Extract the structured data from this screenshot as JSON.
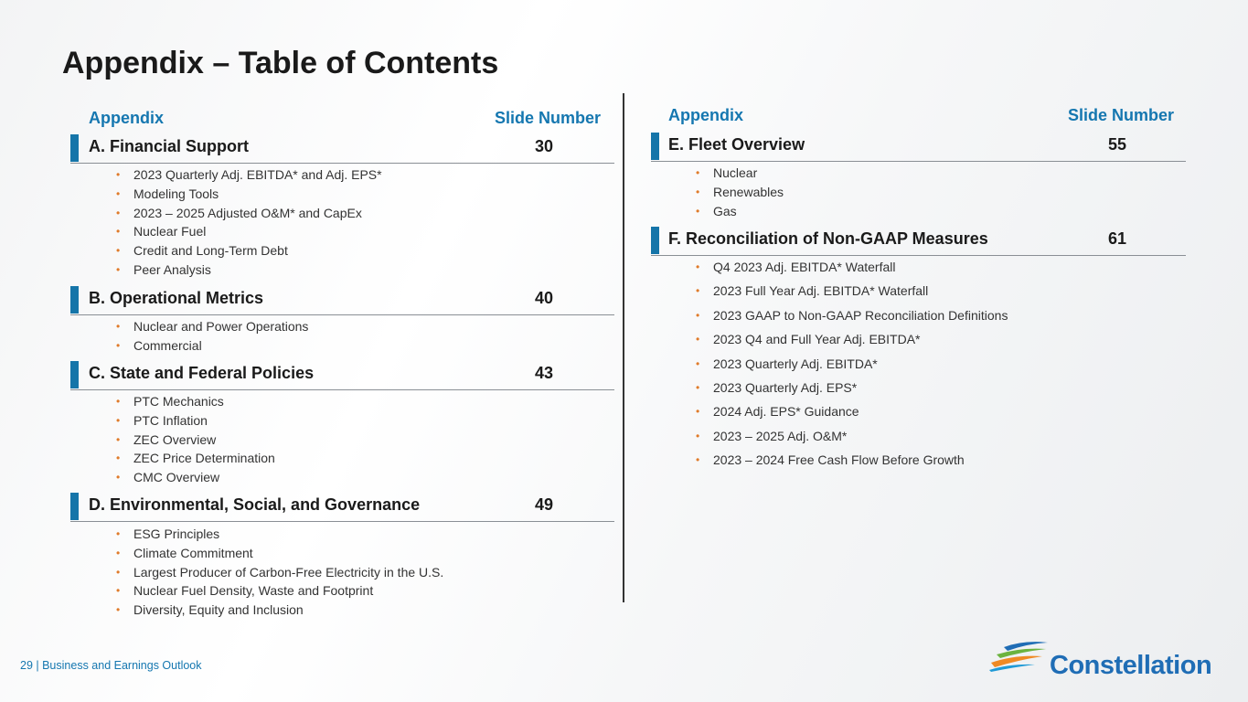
{
  "title": "Appendix – Table of Contents",
  "columns": [
    {
      "header": {
        "appendix": "Appendix",
        "slide_number": "Slide Number"
      },
      "sections": [
        {
          "title": "A. Financial Support",
          "slide": 30,
          "items": [
            "2023 Quarterly Adj. EBITDA* and Adj. EPS*",
            "Modeling Tools",
            "2023 – 2025 Adjusted O&M* and CapEx",
            "Nuclear Fuel",
            "Credit and Long-Term Debt",
            "Peer Analysis"
          ]
        },
        {
          "title": "B. Operational Metrics",
          "slide": 40,
          "items": [
            "Nuclear and Power Operations",
            "Commercial"
          ]
        },
        {
          "title": "C. State and Federal Policies",
          "slide": 43,
          "items": [
            "PTC Mechanics",
            "PTC Inflation",
            "ZEC Overview",
            "ZEC Price Determination",
            "CMC Overview"
          ]
        },
        {
          "title": "D. Environmental, Social, and Governance",
          "slide": 49,
          "items": [
            "ESG Principles",
            "Climate Commitment",
            "Largest Producer of Carbon-Free Electricity in the U.S.",
            "Nuclear Fuel Density, Waste and Footprint",
            "Diversity, Equity and Inclusion"
          ]
        }
      ]
    },
    {
      "header": {
        "appendix": "Appendix",
        "slide_number": "Slide Number"
      },
      "sections": [
        {
          "title": "E. Fleet Overview",
          "slide": 55,
          "items": [
            "Nuclear",
            "Renewables",
            "Gas"
          ]
        },
        {
          "title": "F. Reconciliation of Non-GAAP Measures",
          "slide": 61,
          "items": [
            "Q4 2023 Adj. EBITDA* Waterfall",
            "2023 Full Year Adj. EBITDA* Waterfall",
            "2023 GAAP to Non-GAAP Reconciliation Definitions",
            "2023 Q4 and Full Year Adj. EBITDA*",
            "2023 Quarterly Adj. EBITDA*",
            "2023 Quarterly Adj. EPS*",
            "2024 Adj. EPS* Guidance",
            "2023 – 2025 Adj. O&M*",
            "2023 – 2024 Free Cash Flow Before Growth"
          ]
        }
      ]
    }
  ],
  "footer": {
    "text": "29 | Business and Earnings Outlook"
  },
  "logo": {
    "text": "Constellation"
  }
}
